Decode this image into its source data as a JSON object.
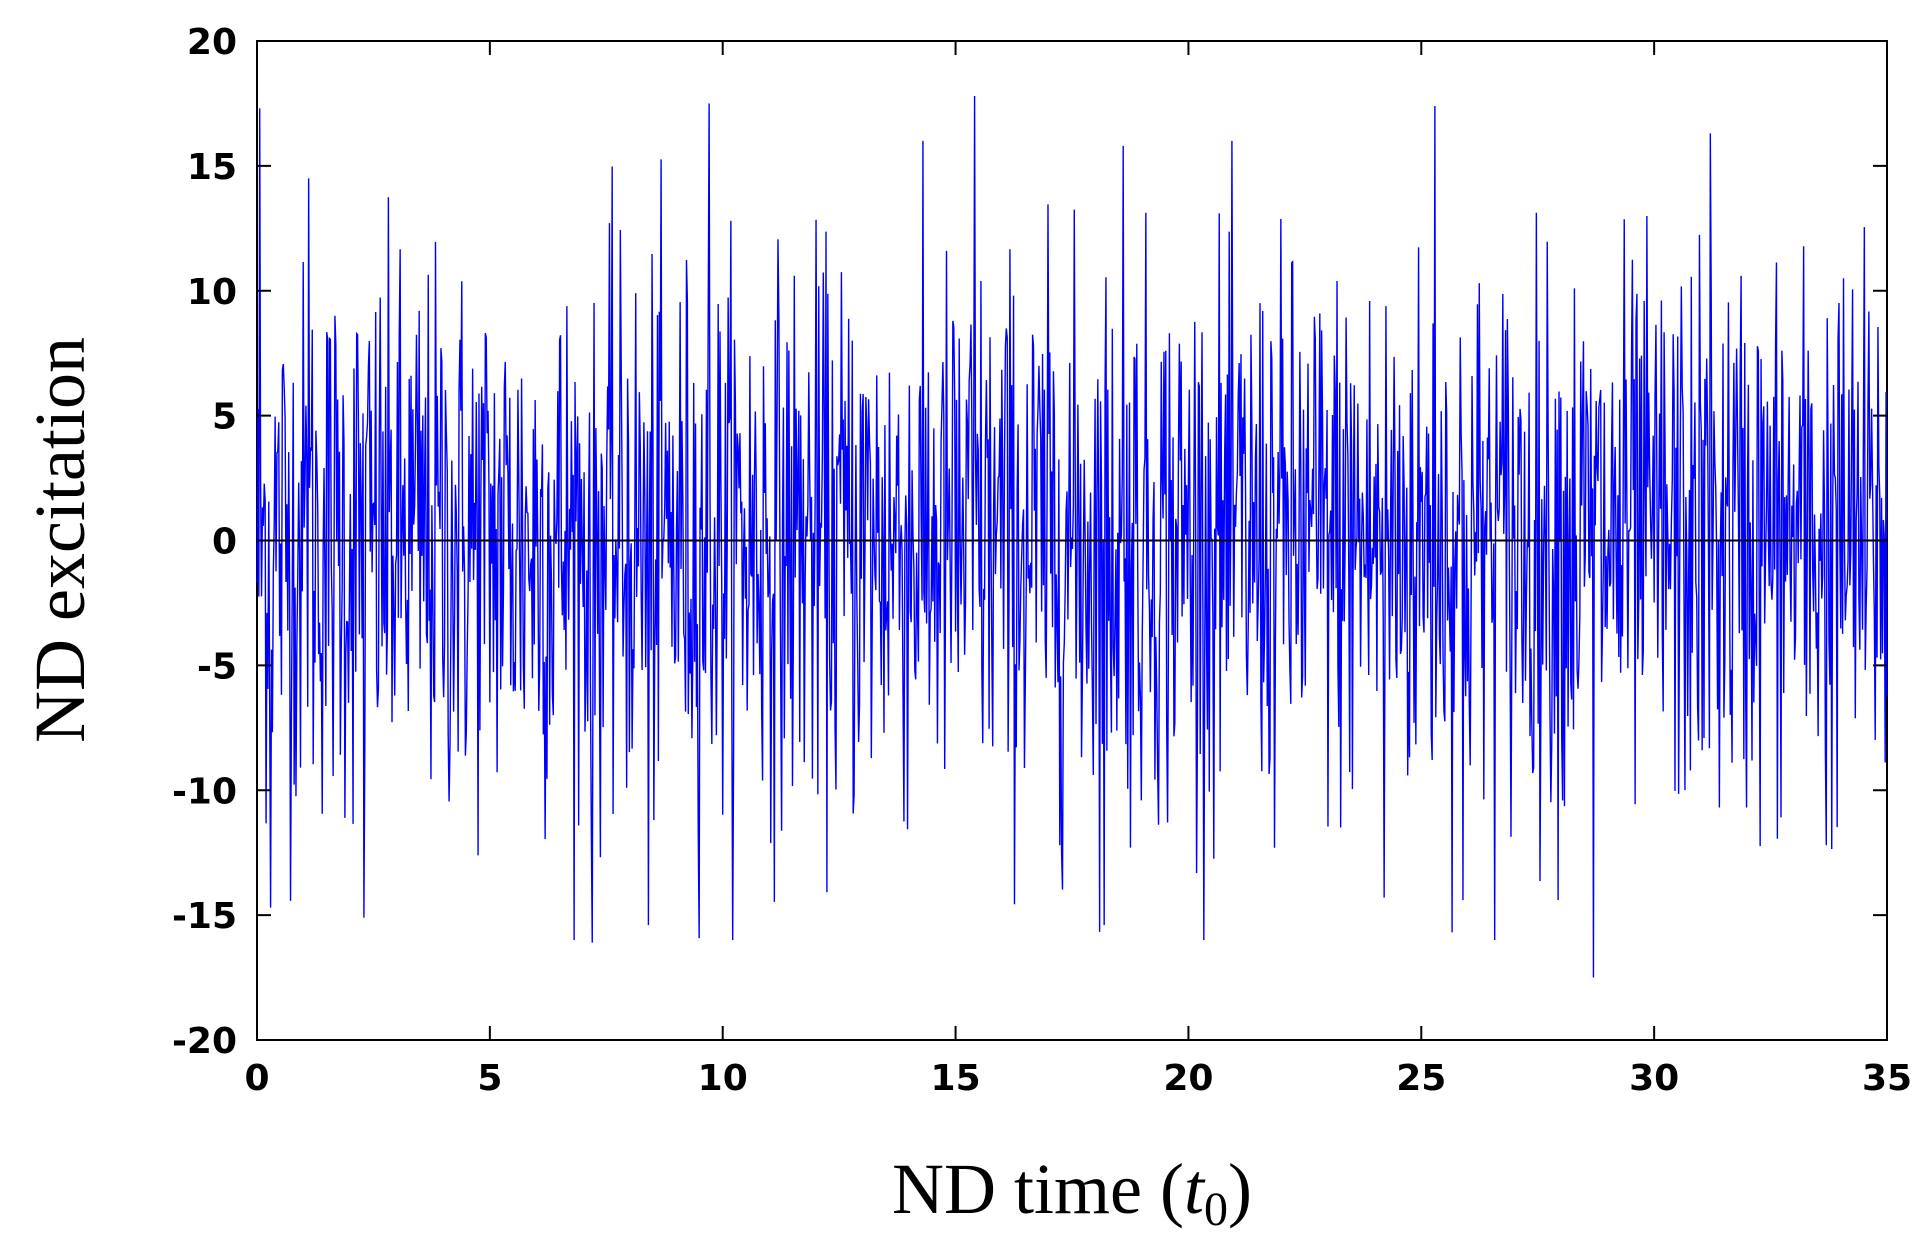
{
  "chart_data": {
    "type": "line",
    "title": "",
    "xlabel": "ND time (",
    "xlabel_var": "t",
    "xlabel_sub": "0",
    "xlabel_close": ")",
    "ylabel": "ND excitation",
    "xlim": [
      0,
      35
    ],
    "ylim": [
      -20,
      20
    ],
    "x_ticks": [
      0,
      5,
      10,
      15,
      20,
      25,
      30,
      35
    ],
    "y_ticks": [
      -20,
      -15,
      -10,
      -5,
      0,
      5,
      10,
      15,
      20
    ],
    "x_tick_labels": [
      "0",
      "5",
      "10",
      "15",
      "20",
      "25",
      "30",
      "35"
    ],
    "y_tick_labels": [
      "-20",
      "-15",
      "-10",
      "-5",
      "0",
      "5",
      "10",
      "15",
      "20"
    ],
    "grid": false,
    "zero_line": true,
    "series": [
      {
        "color": "#0000ff",
        "zero_line_color": "#000000",
        "x_start": 0,
        "x_end": 35,
        "n_points": 1800,
        "approx_rms": 5.5,
        "peaks": [
          {
            "x": 0.05,
            "y": 17.3
          },
          {
            "x": 0.3,
            "y": -14.7
          },
          {
            "x": 1.1,
            "y": 14.5
          },
          {
            "x": 2.3,
            "y": -15.1
          },
          {
            "x": 7.2,
            "y": -16.1
          },
          {
            "x": 8.4,
            "y": -15.4
          },
          {
            "x": 9.7,
            "y": 17.5
          },
          {
            "x": 15.4,
            "y": 17.8
          },
          {
            "x": 18.2,
            "y": -15.4
          },
          {
            "x": 18.6,
            "y": 15.8
          },
          {
            "x": 24.2,
            "y": -14.3
          },
          {
            "x": 25.3,
            "y": 17.4
          },
          {
            "x": 25.9,
            "y": -14.4
          },
          {
            "x": 28.7,
            "y": -17.5
          },
          {
            "x": 31.2,
            "y": 16.3
          },
          {
            "x": 33.7,
            "y": -12.2
          }
        ]
      }
    ]
  }
}
